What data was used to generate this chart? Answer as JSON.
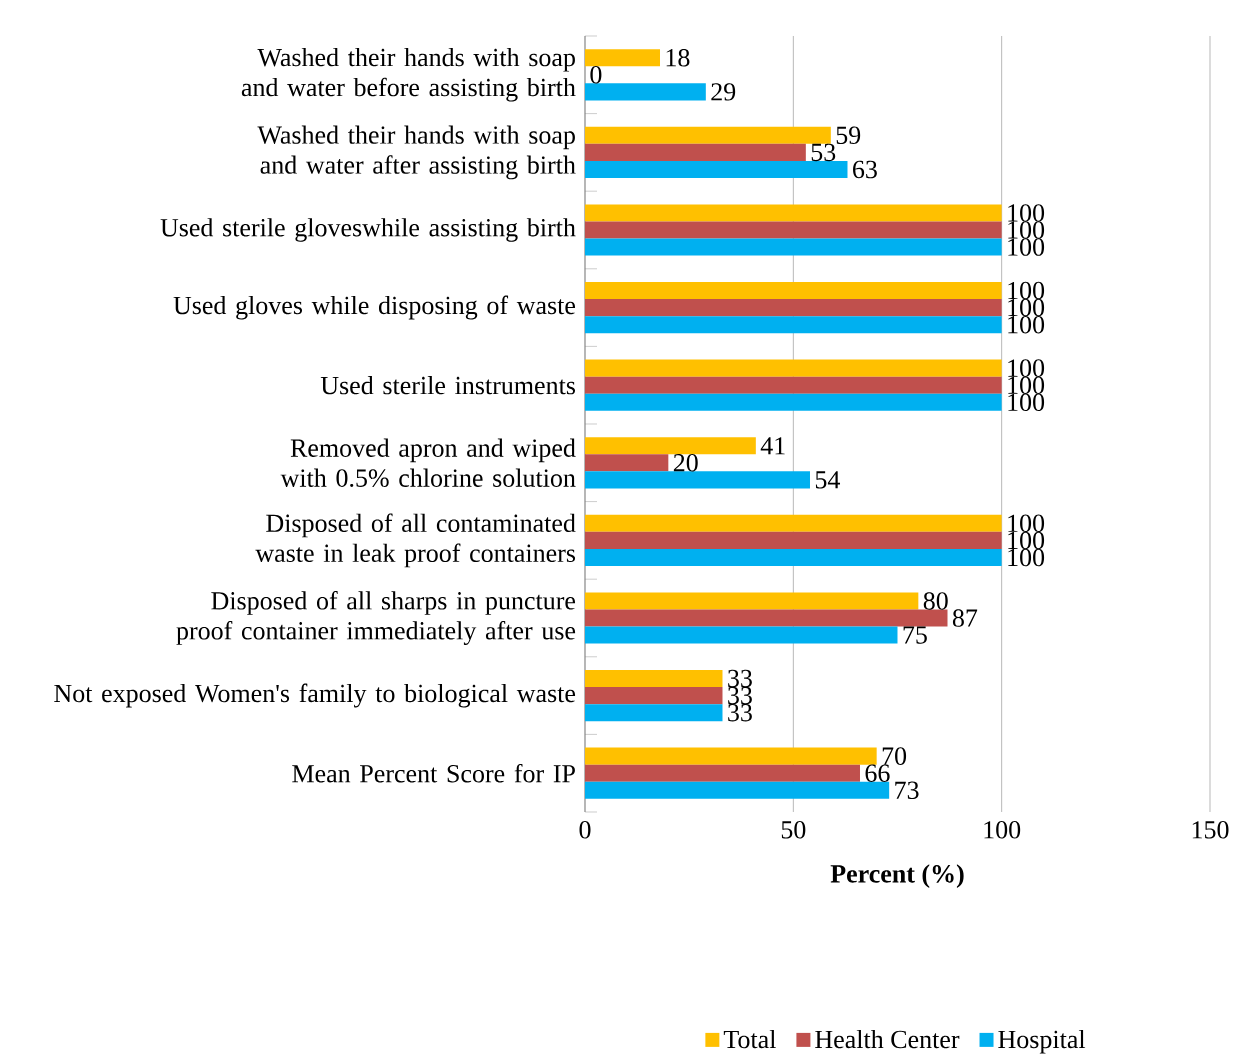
{
  "chart_data": {
    "type": "bar",
    "orientation": "horizontal",
    "xlabel": "Percent (%)",
    "categories": [
      "Washed their hands with soap and water before assisting birth",
      "Washed their hands with soap and water after assisting birth",
      "Used sterile gloveswhile assisting birth",
      "Used gloves while disposing of waste",
      "Used sterile instruments",
      "Removed apron and wiped with 0.5% chlorine solution",
      "Disposed of all contaminated waste in leak proof containers",
      "Disposed of all sharps in puncture proof container immediately after use",
      "Not exposed Women's family to biological waste",
      "Mean Percent Score for IP"
    ],
    "series": [
      {
        "name": "Total",
        "color": "#ffc000",
        "values": [
          18,
          59,
          100,
          100,
          100,
          41,
          100,
          80,
          33,
          70
        ]
      },
      {
        "name": "Health Center",
        "color": "#c0504d",
        "values": [
          0,
          53,
          100,
          100,
          100,
          20,
          100,
          87,
          33,
          66
        ]
      },
      {
        "name": "Hospital",
        "color": "#00b0f0",
        "values": [
          29,
          63,
          100,
          100,
          100,
          54,
          100,
          75,
          33,
          73
        ]
      }
    ],
    "xlim": [
      0,
      150
    ],
    "xticks": [
      0,
      50,
      100,
      150
    ],
    "grid": "x",
    "legend": "bottom",
    "data_labels": true
  }
}
